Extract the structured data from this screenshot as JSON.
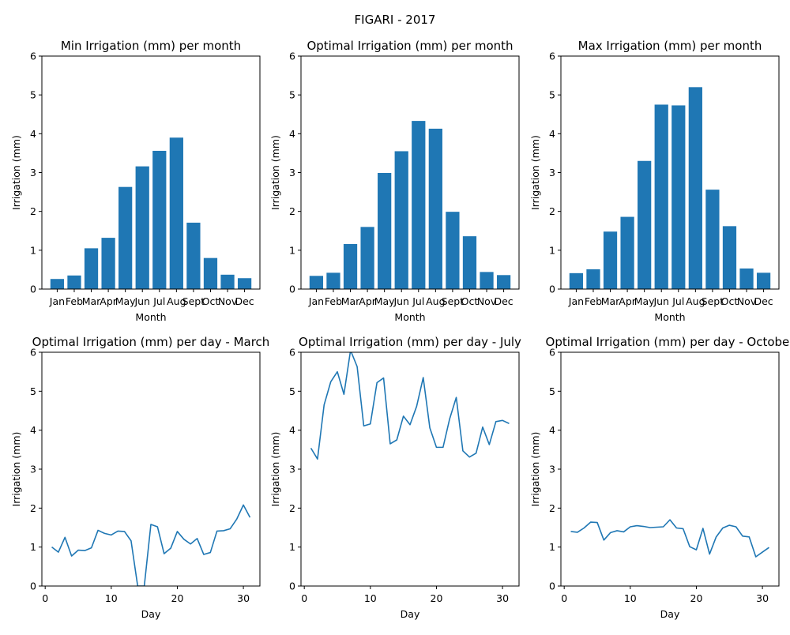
{
  "figure": {
    "suptitle": "FIGARI - 2017",
    "bar_color": "#1f77b4",
    "line_color": "#1f77b4"
  },
  "chart_data": [
    {
      "type": "bar",
      "title": "Min Irrigation (mm) per month",
      "xlabel": "Month",
      "ylabel": "Irrigation (mm)",
      "ylim": [
        0,
        6
      ],
      "yticks": [
        0,
        1,
        2,
        3,
        4,
        5,
        6
      ],
      "categories": [
        "Jan",
        "Feb",
        "Mar",
        "Apr",
        "May",
        "Jun",
        "Jul",
        "Aug",
        "Sept",
        "Oct",
        "Nov",
        "Dec"
      ],
      "values": [
        0.26,
        0.35,
        1.05,
        1.32,
        2.63,
        3.16,
        3.56,
        3.9,
        1.71,
        0.8,
        0.37,
        0.28
      ]
    },
    {
      "type": "bar",
      "title": "Optimal Irrigation (mm) per month",
      "xlabel": "Month",
      "ylabel": "Irrigation (mm)",
      "ylim": [
        0,
        6
      ],
      "yticks": [
        0,
        1,
        2,
        3,
        4,
        5,
        6
      ],
      "categories": [
        "Jan",
        "Feb",
        "Mar",
        "Apr",
        "May",
        "Jun",
        "Jul",
        "Aug",
        "Sept",
        "Oct",
        "Nov",
        "Dec"
      ],
      "values": [
        0.34,
        0.42,
        1.16,
        1.6,
        2.99,
        3.55,
        4.33,
        4.13,
        1.99,
        1.36,
        0.44,
        0.36
      ]
    },
    {
      "type": "bar",
      "title": "Max Irrigation (mm) per month",
      "xlabel": "Month",
      "ylabel": "Irrigation (mm)",
      "ylim": [
        0,
        6
      ],
      "yticks": [
        0,
        1,
        2,
        3,
        4,
        5,
        6
      ],
      "categories": [
        "Jan",
        "Feb",
        "Mar",
        "Apr",
        "May",
        "Jun",
        "Jul",
        "Aug",
        "Sept",
        "Oct",
        "Nov",
        "Dec"
      ],
      "values": [
        0.41,
        0.51,
        1.48,
        1.86,
        3.3,
        4.75,
        4.73,
        5.2,
        2.56,
        1.62,
        0.53,
        0.42
      ]
    },
    {
      "type": "line",
      "title": "Optimal Irrigation (mm) per day - March",
      "xlabel": "Day",
      "ylabel": "Irrigation (mm)",
      "ylim": [
        0,
        6
      ],
      "xlim": [
        -0.5,
        32.5
      ],
      "yticks": [
        0,
        1,
        2,
        3,
        4,
        5,
        6
      ],
      "xticks": [
        0,
        10,
        20,
        30
      ],
      "x": [
        1,
        2,
        3,
        4,
        5,
        6,
        7,
        8,
        9,
        10,
        11,
        12,
        13,
        14,
        15,
        16,
        17,
        18,
        19,
        20,
        21,
        22,
        23,
        24,
        25,
        26,
        27,
        28,
        29,
        30,
        31
      ],
      "values": [
        1.0,
        0.87,
        1.25,
        0.77,
        0.92,
        0.91,
        0.98,
        1.43,
        1.35,
        1.31,
        1.41,
        1.4,
        1.16,
        0.0,
        0.0,
        1.58,
        1.52,
        0.83,
        0.97,
        1.4,
        1.2,
        1.08,
        1.22,
        0.81,
        0.86,
        1.41,
        1.42,
        1.47,
        1.72,
        2.08,
        1.76
      ]
    },
    {
      "type": "line",
      "title": "Optimal Irrigation (mm) per day - July",
      "xlabel": "Day",
      "ylabel": "Irrigation (mm)",
      "ylim": [
        0,
        6
      ],
      "xlim": [
        -0.5,
        32.5
      ],
      "yticks": [
        0,
        1,
        2,
        3,
        4,
        5,
        6
      ],
      "xticks": [
        0,
        10,
        20,
        30
      ],
      "x": [
        1,
        2,
        3,
        4,
        5,
        6,
        7,
        8,
        9,
        10,
        11,
        12,
        13,
        14,
        15,
        16,
        17,
        18,
        19,
        20,
        21,
        22,
        23,
        24,
        25,
        26,
        27,
        28,
        29,
        30,
        31
      ],
      "values": [
        3.54,
        3.26,
        4.65,
        5.24,
        5.5,
        4.92,
        6.05,
        5.63,
        4.11,
        4.16,
        5.22,
        5.34,
        3.65,
        3.75,
        4.36,
        4.14,
        4.61,
        5.35,
        4.06,
        3.56,
        3.56,
        4.29,
        4.84,
        3.47,
        3.31,
        3.41,
        4.08,
        3.63,
        4.22,
        4.25,
        4.17
      ]
    },
    {
      "type": "line",
      "title": "Optimal Irrigation (mm) per day - October",
      "xlabel": "Day",
      "ylabel": "Irrigation (mm)",
      "ylim": [
        0,
        6
      ],
      "xlim": [
        -0.5,
        32.5
      ],
      "yticks": [
        0,
        1,
        2,
        3,
        4,
        5,
        6
      ],
      "xticks": [
        0,
        10,
        20,
        30
      ],
      "x": [
        1,
        2,
        3,
        4,
        5,
        6,
        7,
        8,
        9,
        10,
        11,
        12,
        13,
        14,
        15,
        16,
        17,
        18,
        19,
        20,
        21,
        22,
        23,
        24,
        25,
        26,
        27,
        28,
        29,
        30,
        31
      ],
      "values": [
        1.4,
        1.38,
        1.49,
        1.64,
        1.63,
        1.18,
        1.37,
        1.42,
        1.39,
        1.52,
        1.55,
        1.53,
        1.5,
        1.51,
        1.52,
        1.7,
        1.49,
        1.47,
        1.01,
        0.93,
        1.48,
        0.82,
        1.26,
        1.49,
        1.56,
        1.52,
        1.28,
        1.26,
        0.75,
        0.87,
        0.99
      ]
    }
  ]
}
